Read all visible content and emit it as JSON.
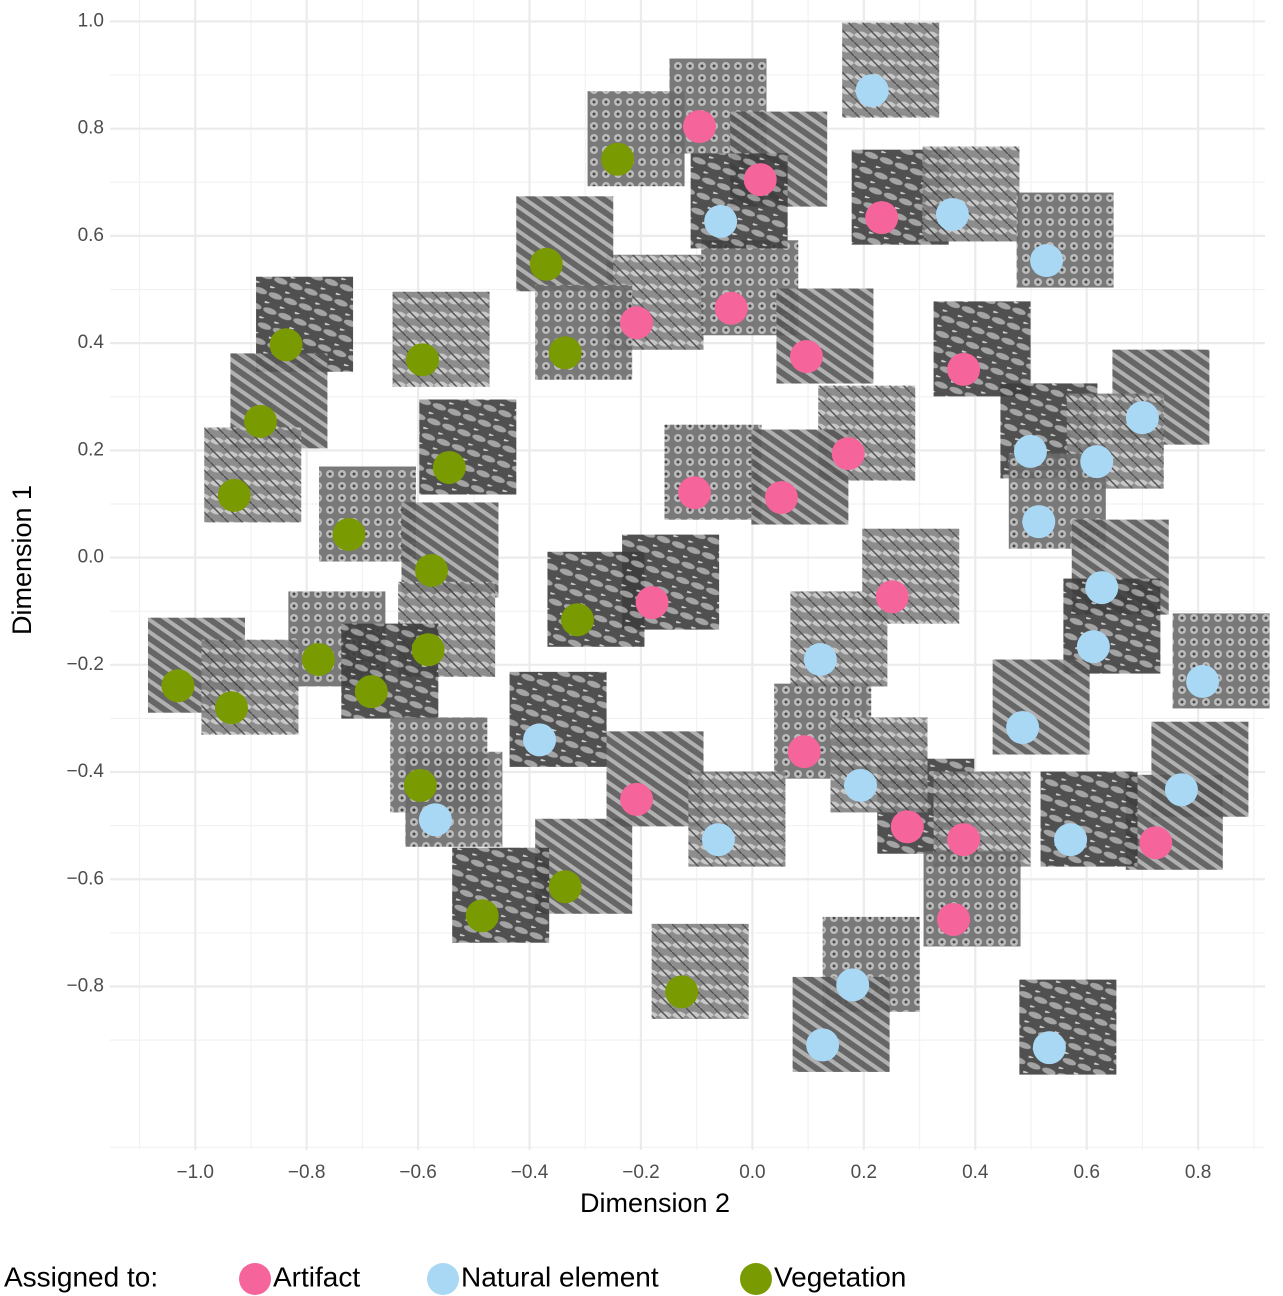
{
  "chart_data": {
    "type": "scatter",
    "xlabel": "Dimension 2",
    "ylabel": "Dimension 1",
    "legend_title": "Assigned to:",
    "legend": "bottom",
    "grid": true,
    "xlim": [
      -1.153,
      0.92
    ],
    "ylim": [
      -1.105,
      1.04
    ],
    "xticks": [
      {
        "value": -1.0,
        "label": "−1.0"
      },
      {
        "value": -0.8,
        "label": "−0.8"
      },
      {
        "value": -0.6,
        "label": "−0.6"
      },
      {
        "value": -0.4,
        "label": "−0.4"
      },
      {
        "value": -0.2,
        "label": "−0.2"
      },
      {
        "value": 0.0,
        "label": "0.0"
      },
      0.2,
      0.4,
      0.6,
      0.8
    ],
    "yticks": [
      {
        "value": -0.8,
        "label": "−0.8"
      },
      {
        "value": -0.6,
        "label": "−0.6"
      },
      {
        "value": -0.4,
        "label": "−0.4"
      },
      {
        "value": -0.2,
        "label": "−0.2"
      },
      {
        "value": 0.0,
        "label": "0.0"
      },
      0.2,
      0.4,
      0.6,
      0.8,
      {
        "value": 1.0,
        "label": "1.0"
      }
    ],
    "series": [
      {
        "name": "Artifact",
        "color": "#f5649a",
        "x": [
          -0.095,
          0.014,
          0.232,
          -0.208,
          -0.038,
          0.097,
          0.379,
          0.172,
          -0.104,
          0.052,
          -0.18,
          0.251,
          0.093,
          -0.208,
          0.278,
          0.379,
          0.361,
          0.724
        ],
        "values": [
          0.804,
          0.705,
          0.634,
          0.438,
          0.465,
          0.375,
          0.351,
          0.194,
          0.121,
          0.112,
          -0.084,
          -0.073,
          -0.362,
          -0.451,
          -0.502,
          -0.526,
          -0.675,
          -0.532
        ]
      },
      {
        "name": "Natural element",
        "color": "#a9d8f5",
        "x": [
          -0.057,
          0.359,
          0.528,
          0.7,
          0.499,
          0.618,
          0.514,
          0.627,
          0.612,
          0.122,
          0.808,
          0.485,
          -0.382,
          0.194,
          -0.569,
          0.77,
          0.571,
          -0.061,
          0.18,
          0.126,
          0.533,
          0.215
        ],
        "values": [
          0.627,
          0.64,
          0.554,
          0.261,
          0.198,
          0.179,
          0.067,
          -0.056,
          -0.166,
          -0.19,
          -0.231,
          -0.317,
          -0.34,
          -0.425,
          -0.489,
          -0.433,
          -0.526,
          -0.526,
          -0.797,
          -0.909,
          -0.914,
          0.871
        ]
      },
      {
        "name": "Vegetation",
        "color": "#7a9a01",
        "x": [
          -0.242,
          -0.37,
          -0.837,
          -0.592,
          -0.336,
          -0.883,
          -0.544,
          -0.93,
          -0.724,
          -0.576,
          -0.314,
          -0.582,
          -0.779,
          -1.031,
          -0.684,
          -0.935,
          -0.596,
          -0.336,
          -0.485,
          -0.127
        ],
        "values": [
          0.743,
          0.547,
          0.397,
          0.369,
          0.382,
          0.254,
          0.168,
          0.116,
          0.043,
          -0.024,
          -0.116,
          -0.172,
          -0.19,
          -0.239,
          -0.25,
          -0.28,
          -0.425,
          -0.614,
          -0.668,
          -0.81
        ]
      }
    ]
  }
}
